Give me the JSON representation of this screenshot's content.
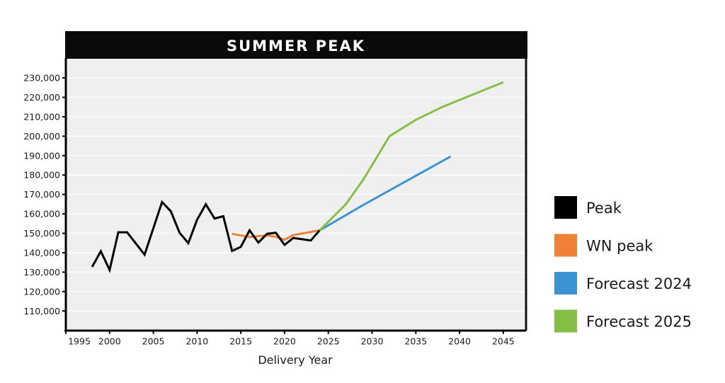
{
  "chart_data": {
    "type": "line",
    "title": "SUMMER PEAK",
    "xlabel": "Delivery Year",
    "ylabel": "",
    "xlim": [
      1995,
      2047.6
    ],
    "ylim": [
      100000,
      240000
    ],
    "x_ticks": [
      1995,
      2000,
      2005,
      2010,
      2015,
      2020,
      2025,
      2030,
      2035,
      2040,
      2045
    ],
    "x_tick_labels": [
      "1995",
      "2000",
      "2005",
      "2010",
      "2015",
      "2020",
      "2025",
      "2030",
      "2035",
      "2040",
      "2045"
    ],
    "y_ticks": [
      110000,
      120000,
      130000,
      140000,
      150000,
      160000,
      170000,
      180000,
      190000,
      200000,
      210000,
      220000,
      230000
    ],
    "y_tick_labels": [
      "110,000",
      "120,000",
      "130,000",
      "140,000",
      "150,000",
      "160,000",
      "170,000",
      "180,000",
      "190,000",
      "200,000",
      "210,000",
      "220,000",
      "230,000"
    ],
    "grid": "horizontal",
    "legend_position": "right",
    "series": [
      {
        "name": "Peak",
        "color": "#000000",
        "x": [
          1998,
          1999,
          2000,
          2001,
          2002,
          2004,
          2006,
          2007,
          2008,
          2009,
          2010,
          2011,
          2012,
          2013,
          2014,
          2015,
          2016,
          2017,
          2018,
          2019,
          2020,
          2021,
          2023,
          2024
        ],
        "y": [
          132700,
          140800,
          131100,
          150500,
          150500,
          139000,
          166100,
          161300,
          150300,
          144900,
          157000,
          164900,
          157600,
          158800,
          140900,
          143000,
          151500,
          145200,
          149700,
          150300,
          144000,
          147600,
          146300,
          151500
        ]
      },
      {
        "name": "WN peak",
        "color": "#ee8136",
        "x": [
          2014,
          2015,
          2016,
          2017,
          2018,
          2019,
          2020,
          2021,
          2024
        ],
        "y": [
          149700,
          148900,
          148100,
          148500,
          148900,
          148200,
          146700,
          149100,
          151500
        ]
      },
      {
        "name": "Forecast 2024",
        "color": "#3a93d2",
        "x": [
          2024,
          2029,
          2033,
          2039
        ],
        "y": [
          151500,
          164600,
          174600,
          189600
        ]
      },
      {
        "name": "Forecast 2025",
        "color": "#86bf45",
        "x": [
          2024,
          2027,
          2029,
          2032,
          2035,
          2038,
          2045
        ],
        "y": [
          151500,
          164900,
          177700,
          200000,
          208400,
          215000,
          227800
        ]
      }
    ]
  }
}
